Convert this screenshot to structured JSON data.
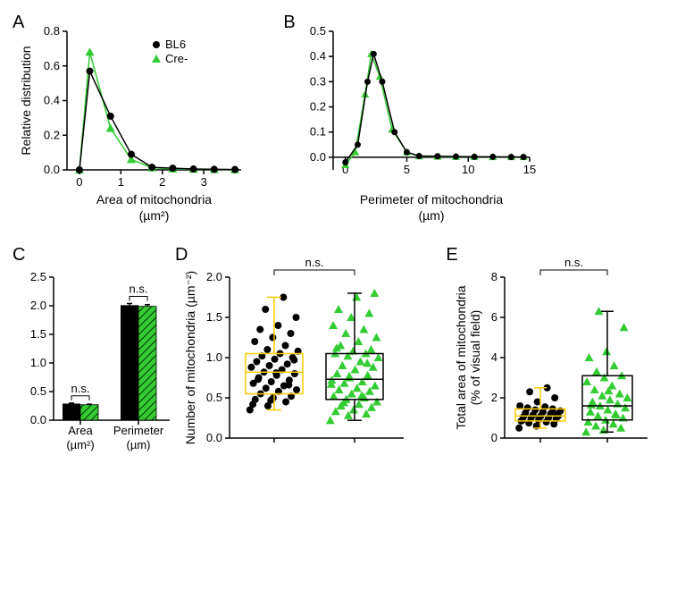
{
  "colors": {
    "bl6": "#000000",
    "cre": "#33cc33",
    "box_bl6": "#ffcc00",
    "box_cre": "#000000",
    "background": "#ffffff"
  },
  "legend": {
    "bl6": "BL6",
    "cre": "Cre-"
  },
  "labels": {
    "A": "A",
    "B": "B",
    "C": "C",
    "D": "D",
    "E": "E",
    "ns": "n.s.",
    "relative_distribution": "Relative distribution",
    "area_mito": "Area of mitochondria",
    "area_unit": "(µm²)",
    "perim_mito": "Perimeter of mitochondria",
    "perim_unit": "(µm)",
    "area_label": "Area",
    "perim_label": "Perimeter",
    "area_paren": "(µm²)",
    "perim_paren": "(µm)",
    "number_mito": "Number of mitochondria (µm⁻²)",
    "total_area": "Total area of mitochondria",
    "pct_vf": "(% of visual field)"
  },
  "panelA": {
    "type": "line",
    "xlim": [
      -0.3,
      3.9
    ],
    "ylim": [
      0,
      0.8
    ],
    "xticks": [
      0,
      1,
      2,
      3
    ],
    "yticks": [
      0,
      0.2,
      0.4,
      0.6,
      0.8
    ],
    "bl6_x": [
      0.0,
      0.25,
      0.75,
      1.25,
      1.75,
      2.25,
      2.75,
      3.25,
      3.75
    ],
    "bl6_y": [
      0.0,
      0.57,
      0.31,
      0.09,
      0.015,
      0.01,
      0.005,
      0.003,
      0.002
    ],
    "cre_x": [
      0.0,
      0.25,
      0.75,
      1.25,
      1.75,
      2.25,
      2.75,
      3.25,
      3.75
    ],
    "cre_y": [
      0.0,
      0.68,
      0.24,
      0.06,
      0.012,
      0.006,
      0.004,
      0.002,
      0.001
    ]
  },
  "panelB": {
    "type": "line",
    "xlim": [
      -1,
      15
    ],
    "ylim": [
      -0.05,
      0.5
    ],
    "xticks": [
      0,
      5,
      10,
      15
    ],
    "yticks": [
      0,
      0.1,
      0.2,
      0.3,
      0.4,
      0.5
    ],
    "bl6_x": [
      0,
      1.0,
      1.8,
      2.3,
      3.0,
      4.0,
      5.0,
      6.0,
      7.5,
      9.0,
      10.5,
      12.0,
      13.5,
      14.5
    ],
    "bl6_y": [
      -0.02,
      0.05,
      0.3,
      0.41,
      0.3,
      0.1,
      0.02,
      0.005,
      0.004,
      0.003,
      0.002,
      0.002,
      0.001,
      0.001
    ],
    "cre_x": [
      0,
      0.8,
      1.6,
      2.1,
      2.8,
      3.8,
      5.0,
      6.0,
      7.5,
      9.0,
      10.5,
      12.0,
      13.5,
      14.5
    ],
    "cre_y": [
      -0.03,
      0.02,
      0.25,
      0.41,
      0.32,
      0.11,
      0.02,
      0.004,
      0.003,
      0.002,
      0.002,
      0.001,
      0.001,
      0.001
    ]
  },
  "panelC": {
    "type": "bar",
    "ylim": [
      0,
      2.5
    ],
    "yticks": [
      0,
      0.5,
      1.0,
      1.5,
      2.0,
      2.5
    ],
    "groups": [
      "Area",
      "Perimeter"
    ],
    "bl6_values": [
      0.29,
      2.01
    ],
    "cre_values": [
      0.27,
      1.99
    ],
    "bl6_err": [
      0.01,
      0.03
    ],
    "cre_err": [
      0.01,
      0.03
    ]
  },
  "panelD": {
    "type": "box-scatter",
    "ylim": [
      0,
      2.0
    ],
    "yticks": [
      0,
      0.5,
      1.0,
      1.5,
      2.0
    ],
    "bl6_points": [
      0.35,
      0.4,
      0.45,
      0.48,
      0.5,
      0.52,
      0.55,
      0.58,
      0.6,
      0.62,
      0.65,
      0.68,
      0.7,
      0.72,
      0.75,
      0.78,
      0.8,
      0.82,
      0.85,
      0.88,
      0.9,
      0.92,
      0.95,
      0.98,
      1.0,
      1.02,
      1.05,
      1.08,
      1.1,
      1.15,
      1.2,
      1.25,
      1.3,
      1.35,
      1.4,
      1.5,
      1.6,
      1.75,
      0.42,
      0.47,
      0.66,
      0.73,
      0.81,
      0.97
    ],
    "cre_points": [
      0.22,
      0.28,
      0.3,
      0.33,
      0.35,
      0.38,
      0.4,
      0.42,
      0.45,
      0.48,
      0.5,
      0.52,
      0.55,
      0.58,
      0.6,
      0.62,
      0.65,
      0.68,
      0.7,
      0.72,
      0.75,
      0.78,
      0.8,
      0.85,
      0.88,
      0.9,
      0.95,
      1.0,
      1.02,
      1.05,
      1.05,
      1.08,
      1.1,
      1.15,
      1.2,
      1.25,
      1.3,
      1.35,
      1.4,
      1.5,
      1.55,
      1.6,
      1.75,
      1.8,
      0.44,
      0.53,
      0.67,
      0.77,
      0.93,
      1.12
    ],
    "bl6_box": {
      "q1": 0.55,
      "median": 0.82,
      "q3": 1.05,
      "whisker_lo": 0.35,
      "whisker_hi": 1.75
    },
    "cre_box": {
      "q1": 0.48,
      "median": 0.73,
      "q3": 1.05,
      "whisker_lo": 0.22,
      "whisker_hi": 1.8
    }
  },
  "panelE": {
    "type": "box-scatter",
    "ylim": [
      0,
      8
    ],
    "yticks": [
      0,
      2,
      4,
      6,
      8
    ],
    "bl6_points": [
      0.5,
      0.6,
      0.7,
      0.75,
      0.8,
      0.85,
      0.9,
      0.95,
      1.0,
      1.0,
      1.05,
      1.1,
      1.1,
      1.15,
      1.2,
      1.25,
      1.3,
      1.35,
      1.4,
      1.45,
      1.5,
      1.55,
      1.6,
      1.8,
      2.0,
      2.3,
      2.5,
      0.88,
      1.02,
      1.18
    ],
    "cre_points": [
      0.3,
      0.4,
      0.5,
      0.6,
      0.7,
      0.8,
      0.9,
      1.0,
      1.1,
      1.2,
      1.3,
      1.4,
      1.5,
      1.6,
      1.7,
      1.8,
      1.9,
      2.0,
      2.1,
      2.2,
      2.4,
      2.6,
      2.8,
      3.0,
      3.1,
      3.3,
      3.6,
      4.0,
      4.3,
      5.5,
      6.3,
      1.15,
      1.65,
      2.35
    ],
    "bl6_box": {
      "q1": 0.85,
      "median": 1.1,
      "q3": 1.45,
      "whisker_lo": 0.5,
      "whisker_hi": 2.5
    },
    "cre_box": {
      "q1": 0.9,
      "median": 1.6,
      "q3": 3.1,
      "whisker_lo": 0.3,
      "whisker_hi": 6.3
    }
  }
}
